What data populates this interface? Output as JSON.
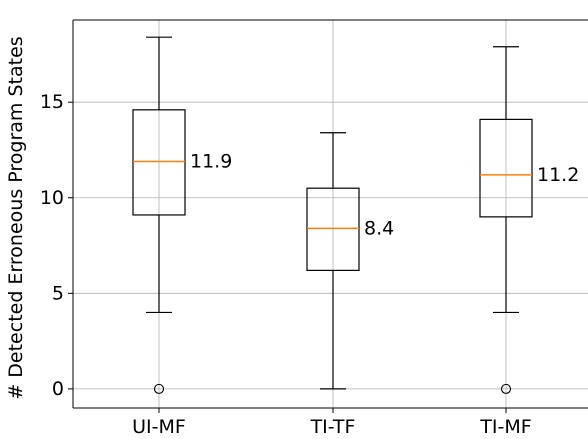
{
  "chart_data": {
    "type": "box",
    "title": "",
    "xlabel": "",
    "ylabel": "# Detected Erroneous Program States",
    "ylim": [
      -1,
      19.3
    ],
    "y_ticks": [
      0,
      5,
      10,
      15
    ],
    "grid": true,
    "categories": [
      "UI-MF",
      "TI-TF",
      "TI-MF"
    ],
    "boxes": [
      {
        "label": "UI-MF",
        "whisker_low": 4.0,
        "q1": 9.1,
        "median": 11.9,
        "q3": 14.6,
        "whisker_high": 18.4,
        "outliers": [
          0
        ],
        "median_label": "11.9"
      },
      {
        "label": "TI-TF",
        "whisker_low": 0.0,
        "q1": 6.2,
        "median": 8.4,
        "q3": 10.5,
        "whisker_high": 13.4,
        "outliers": [],
        "median_label": "8.4"
      },
      {
        "label": "TI-MF",
        "whisker_low": 4.0,
        "q1": 9.0,
        "median": 11.2,
        "q3": 14.1,
        "whisker_high": 17.9,
        "outliers": [
          0
        ],
        "median_label": "11.2"
      }
    ],
    "colors": {
      "box": "#000000",
      "median": "#ff7f0e",
      "grid": "#b0b0b0"
    }
  }
}
